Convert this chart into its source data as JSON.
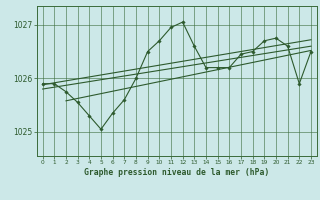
{
  "xlabel": "Graphe pression niveau de la mer (hPa)",
  "bg_color": "#cce8e8",
  "grid_color": "#3a6b3a",
  "line_color": "#2d5a2d",
  "marker_color": "#2d5a2d",
  "axis_color": "#3a6b3a",
  "text_color": "#2d5a2d",
  "ylim": [
    1024.55,
    1027.35
  ],
  "yticks": [
    1025,
    1026,
    1027
  ],
  "xlim": [
    -0.5,
    23.5
  ],
  "xticks": [
    0,
    1,
    2,
    3,
    4,
    5,
    6,
    7,
    8,
    9,
    10,
    11,
    12,
    13,
    14,
    15,
    16,
    17,
    18,
    19,
    20,
    21,
    22,
    23
  ],
  "hours": [
    0,
    1,
    2,
    3,
    4,
    5,
    6,
    7,
    8,
    9,
    10,
    11,
    12,
    13,
    14,
    15,
    16,
    17,
    18,
    19,
    20,
    21,
    22,
    23
  ],
  "pressure": [
    1025.9,
    1025.9,
    1025.75,
    1025.55,
    1025.3,
    1025.05,
    1025.35,
    1025.6,
    1026.0,
    1026.5,
    1026.7,
    1026.95,
    1027.05,
    1026.6,
    1026.2,
    1026.2,
    1026.2,
    1026.45,
    1026.5,
    1026.7,
    1026.75,
    1026.6,
    1025.9,
    1026.5
  ],
  "trend1_x": [
    0,
    23
  ],
  "trend1_y": [
    1025.88,
    1026.72
  ],
  "trend2_x": [
    0,
    23
  ],
  "trend2_y": [
    1025.8,
    1026.6
  ],
  "trend3_x": [
    2,
    23
  ],
  "trend3_y": [
    1025.58,
    1026.52
  ]
}
